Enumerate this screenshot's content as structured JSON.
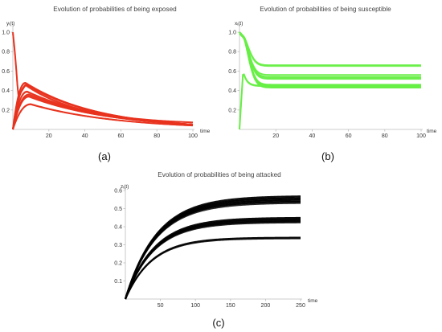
{
  "chart_data": [
    {
      "type": "line",
      "panel": "(a)",
      "title": "Evolution of probabilities of being exposed",
      "xlabel": "time",
      "ylabel": "yᵢ(t)",
      "xlim": [
        0,
        100
      ],
      "ylim": [
        0,
        1.05
      ],
      "xticks": [
        "20",
        "40",
        "60",
        "80",
        "100"
      ],
      "yticks": [
        "0.2",
        "0.4",
        "0.6",
        "0.8",
        "1.0"
      ],
      "color": "#e8321e",
      "grid": false,
      "legend": "none",
      "model": "exposed",
      "series_summary": [
        {
          "start": 0.0,
          "peak_time": 7,
          "peak": 0.48,
          "end_value": 0.05
        },
        {
          "start": 0.0,
          "peak_time": 8,
          "peak": 0.46,
          "end_value": 0.05
        },
        {
          "start": 0.0,
          "peak_time": 8,
          "peak": 0.39,
          "end_value": 0.05
        },
        {
          "start": 0.0,
          "peak_time": 9,
          "peak": 0.36,
          "end_value": 0.05
        },
        {
          "start": 0.0,
          "peak_time": 9,
          "peak": 0.34,
          "end_value": 0.05
        },
        {
          "start": 0.0,
          "peak_time": 10,
          "peak": 0.26,
          "end_value": 0.04
        },
        {
          "start": 1.0,
          "peak_time": 0,
          "peak": 1.0,
          "end_value": 0.05
        }
      ]
    },
    {
      "type": "line",
      "panel": "(b)",
      "title": "Evolution of probabilities of being susceptible",
      "xlabel": "time",
      "ylabel": "xᵢ(t)",
      "xlim": [
        0,
        100
      ],
      "ylim": [
        0,
        1.05
      ],
      "xticks": [
        "20",
        "40",
        "60",
        "80",
        "100"
      ],
      "yticks": [
        "0.2",
        "0.4",
        "0.6",
        "0.8",
        "1.0"
      ],
      "color": "#66ee44",
      "grid": false,
      "legend": "none",
      "model": "susceptible",
      "series_summary": [
        {
          "start": 1.0,
          "end_value": 0.66
        },
        {
          "start": 1.0,
          "end_value": 0.56
        },
        {
          "start": 1.0,
          "end_value": 0.54
        },
        {
          "start": 1.0,
          "end_value": 0.52
        },
        {
          "start": 1.0,
          "end_value": 0.46
        },
        {
          "start": 1.0,
          "end_value": 0.45
        },
        {
          "start": 1.0,
          "end_value": 0.44
        },
        {
          "start": 1.0,
          "end_value": 0.43
        },
        {
          "start": 0.0,
          "end_value": 0.45
        }
      ]
    },
    {
      "type": "line",
      "panel": "(c)",
      "title": "Evolution of probabilities of being attacked",
      "xlabel": "time",
      "ylabel": "zᵢ(t)",
      "xlim": [
        0,
        250
      ],
      "ylim": [
        0,
        0.6
      ],
      "xticks": [
        "50",
        "100",
        "150",
        "200",
        "250"
      ],
      "yticks": [
        "0.1",
        "0.2",
        "0.3",
        "0.4",
        "0.5",
        "0.6"
      ],
      "color": "#000000",
      "grid": false,
      "legend": "none",
      "model": "attacked",
      "series_summary": [
        {
          "start": 0.0,
          "end_value": 0.57
        },
        {
          "start": 0.0,
          "end_value": 0.56
        },
        {
          "start": 0.0,
          "end_value": 0.55
        },
        {
          "start": 0.0,
          "end_value": 0.54
        },
        {
          "start": 0.0,
          "end_value": 0.45
        },
        {
          "start": 0.0,
          "end_value": 0.44
        },
        {
          "start": 0.0,
          "end_value": 0.43
        },
        {
          "start": 0.0,
          "end_value": 0.34
        }
      ]
    }
  ]
}
